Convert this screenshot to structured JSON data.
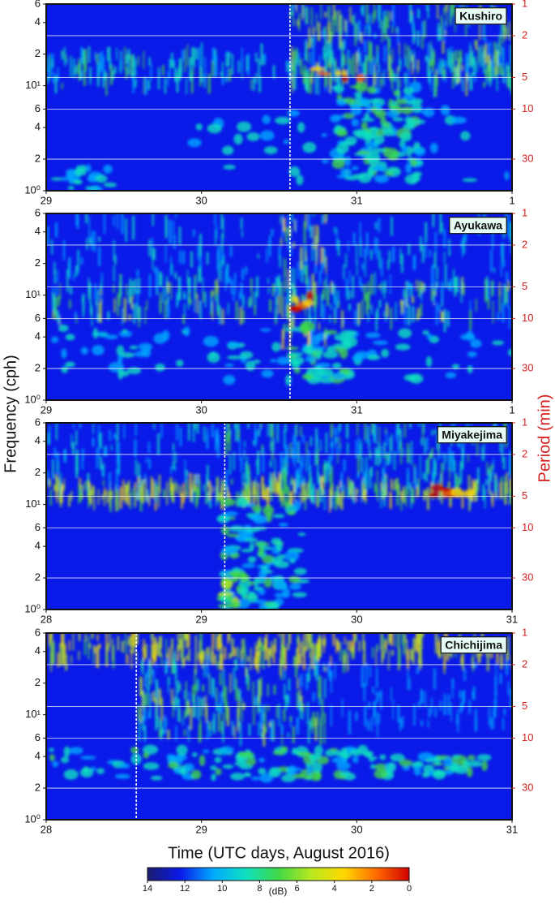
{
  "figure": {
    "ylabel": "Frequency (cph)",
    "y2label": "Period (min)",
    "xlabel": "Time (UTC days, August 2016)",
    "colorbar": {
      "label": "(dB)",
      "lim": [
        14,
        0
      ],
      "ticks": [
        14,
        12,
        10,
        8,
        6,
        4,
        2,
        0
      ],
      "colors": [
        "#1c1c6e",
        "#0a1ae8",
        "#00a8ff",
        "#10e0c0",
        "#40d848",
        "#b8e820",
        "#ffd800",
        "#ff6a00",
        "#d00000"
      ]
    }
  },
  "chart_data": [
    {
      "type": "spectrogram",
      "title": "Kushiro",
      "xlim": [
        29,
        32
      ],
      "xticks": [
        29,
        30,
        31,
        {
          "value": 32,
          "label": "1"
        }
      ],
      "ylim": [
        1,
        60
      ],
      "log_y": true,
      "yticks": [
        {
          "value": 1,
          "label": "10⁰"
        },
        2,
        4,
        6,
        {
          "value": 10,
          "label": "10¹"
        },
        {
          "value": 20,
          "label": "2"
        },
        {
          "value": 40,
          "label": "4"
        },
        {
          "value": 60,
          "label": "6"
        }
      ],
      "y2lim": [
        60,
        1
      ],
      "y2ticks": [
        1,
        2,
        5,
        10,
        30
      ],
      "grid": "y2",
      "event_x": 30.57
    },
    {
      "type": "spectrogram",
      "title": "Ayukawa",
      "xlim": [
        29,
        32
      ],
      "xticks": [
        29,
        30,
        31,
        {
          "value": 32,
          "label": "1"
        }
      ],
      "ylim": [
        1,
        60
      ],
      "log_y": true,
      "yticks": [
        {
          "value": 1,
          "label": "10⁰"
        },
        2,
        4,
        6,
        {
          "value": 10,
          "label": "10¹"
        },
        {
          "value": 20,
          "label": "2"
        },
        {
          "value": 40,
          "label": "4"
        },
        {
          "value": 60,
          "label": "6"
        }
      ],
      "y2lim": [
        60,
        1
      ],
      "y2ticks": [
        1,
        2,
        5,
        10,
        30
      ],
      "grid": "y2",
      "event_x": 30.57
    },
    {
      "type": "spectrogram",
      "title": "Miyakejima",
      "xlim": [
        28,
        31
      ],
      "xticks": [
        28,
        29,
        30,
        31
      ],
      "ylim": [
        1,
        60
      ],
      "log_y": true,
      "yticks": [
        {
          "value": 1,
          "label": "10⁰"
        },
        2,
        4,
        6,
        {
          "value": 10,
          "label": "10¹"
        },
        {
          "value": 20,
          "label": "2"
        },
        {
          "value": 40,
          "label": "4"
        },
        {
          "value": 60,
          "label": "6"
        }
      ],
      "y2lim": [
        60,
        1
      ],
      "y2ticks": [
        1,
        2,
        5,
        10,
        30
      ],
      "grid": "y2",
      "event_x": 29.15
    },
    {
      "type": "spectrogram",
      "title": "Chichijima",
      "xlim": [
        28,
        31
      ],
      "xticks": [
        28,
        29,
        30,
        31
      ],
      "ylim": [
        1,
        60
      ],
      "log_y": true,
      "yticks": [
        {
          "value": 1,
          "label": "10⁰"
        },
        2,
        4,
        6,
        {
          "value": 10,
          "label": "10¹"
        },
        {
          "value": 20,
          "label": "2"
        },
        {
          "value": 40,
          "label": "4"
        },
        {
          "value": 60,
          "label": "6"
        }
      ],
      "y2lim": [
        60,
        1
      ],
      "y2ticks": [
        1,
        2,
        5,
        10,
        30
      ],
      "grid": "y2",
      "event_x": 28.58
    }
  ]
}
